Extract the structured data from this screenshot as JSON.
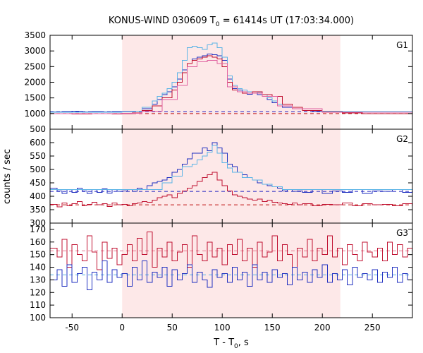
{
  "chart_data": {
    "type": "line",
    "title": "KONUS-WIND 030609 T",
    "title_sub": "0",
    "title_rest": " = 61414s UT (17:03:34.000)",
    "xlabel_main": "T - T",
    "xlabel_sub": "0",
    "xlabel_rest": ", s",
    "ylabel": "counts / sec",
    "xlim": [
      -72,
      290
    ],
    "xticks": [
      -50,
      0,
      50,
      100,
      150,
      200,
      250
    ],
    "xtick_labels": [
      "-50",
      "0",
      "50",
      "100",
      "150",
      "200",
      "250"
    ],
    "shaded_interval": [
      0,
      218
    ],
    "shade_color": "#fde8e8",
    "panels": [
      {
        "name": "G1",
        "ylim": [
          500,
          3500
        ],
        "yticks": [
          500,
          1000,
          1500,
          2000,
          2500,
          3000,
          3500
        ],
        "ytick_labels": [
          "500",
          "1000",
          "1500",
          "2000",
          "2500",
          "3000",
          "3500"
        ],
        "show_bottom_tick_label": true,
        "background_levels": [
          {
            "value": 1060,
            "color": "#2020c0"
          },
          {
            "value": 1000,
            "color": "#c01010"
          }
        ],
        "series": [
          {
            "color": "#2030c0",
            "x": [
              -72,
              -60,
              -50,
              -40,
              -30,
              -20,
              -10,
              0,
              10,
              20,
              30,
              35,
              40,
              45,
              50,
              55,
              60,
              65,
              70,
              75,
              80,
              85,
              90,
              95,
              100,
              105,
              110,
              115,
              120,
              125,
              130,
              135,
              140,
              145,
              150,
              155,
              160,
              170,
              180,
              190,
              200,
              210,
              220,
              230,
              240,
              250,
              260,
              270,
              280,
              290
            ],
            "y": [
              1050,
              1060,
              1070,
              1050,
              1060,
              1050,
              1060,
              1060,
              1080,
              1150,
              1300,
              1450,
              1600,
              1700,
              1850,
              2100,
              2400,
              2600,
              2750,
              2800,
              2850,
              2900,
              2880,
              2850,
              2700,
              2100,
              1800,
              1750,
              1650,
              1620,
              1700,
              1600,
              1550,
              1450,
              1350,
              1250,
              1200,
              1150,
              1100,
              1080,
              1070,
              1060,
              1050,
              1050,
              1060,
              1050,
              1060,
              1050,
              1060,
              1050
            ]
          },
          {
            "color": "#5ab4e6",
            "x": [
              -72,
              0,
              10,
              20,
              30,
              35,
              40,
              45,
              50,
              55,
              60,
              65,
              70,
              75,
              80,
              85,
              90,
              95,
              100,
              105,
              110,
              115,
              120,
              125,
              130,
              135,
              140,
              145,
              150,
              155,
              160,
              170,
              180,
              200,
              220,
              290
            ],
            "y": [
              1040,
              1050,
              1080,
              1200,
              1400,
              1550,
              1650,
              1800,
              2000,
              2300,
              2700,
              3100,
              3150,
              3100,
              3050,
              3200,
              3250,
              3100,
              2800,
              2200,
              1900,
              1800,
              1750,
              1700,
              1650,
              1680,
              1600,
              1500,
              1400,
              1300,
              1250,
              1150,
              1100,
              1070,
              1060,
              1050
            ]
          },
          {
            "color": "#c01030",
            "x": [
              -72,
              -50,
              -30,
              -10,
              0,
              10,
              20,
              30,
              40,
              50,
              55,
              60,
              65,
              70,
              75,
              80,
              85,
              90,
              95,
              100,
              105,
              110,
              115,
              120,
              130,
              140,
              150,
              160,
              170,
              180,
              200,
              220,
              240,
              260,
              290
            ],
            "y": [
              1000,
              990,
              1000,
              990,
              1000,
              1020,
              1100,
              1250,
              1500,
              1750,
              2000,
              2300,
              2600,
              2700,
              2750,
              2800,
              2850,
              2800,
              2750,
              2500,
              2000,
              1750,
              1700,
              1650,
              1700,
              1600,
              1550,
              1300,
              1200,
              1100,
              1050,
              1020,
              1000,
              1000,
              990
            ]
          },
          {
            "color": "#e060a0",
            "x": [
              -72,
              0,
              20,
              40,
              55,
              65,
              75,
              85,
              95,
              105,
              115,
              125,
              140,
              155,
              170,
              200,
              290
            ],
            "y": [
              1000,
              1010,
              1080,
              1450,
              1900,
              2500,
              2650,
              2700,
              2600,
              1850,
              1700,
              1650,
              1550,
              1250,
              1150,
              1040,
              1000
            ]
          }
        ]
      },
      {
        "name": "G2",
        "ylim": [
          300,
          650
        ],
        "yticks": [
          300,
          350,
          400,
          450,
          500,
          550,
          600
        ],
        "ytick_labels": [
          "300",
          "350",
          "400",
          "450",
          "500",
          "550",
          "600"
        ],
        "show_bottom_tick_label": true,
        "background_levels": [
          {
            "value": 418,
            "color": "#2020c0"
          },
          {
            "value": 368,
            "color": "#c01010"
          }
        ],
        "series": [
          {
            "color": "#2030c0",
            "x": [
              -72,
              -65,
              -60,
              -55,
              -50,
              -45,
              -40,
              -35,
              -30,
              -25,
              -20,
              -15,
              -10,
              -5,
              0,
              5,
              10,
              15,
              20,
              25,
              30,
              35,
              40,
              45,
              50,
              55,
              60,
              65,
              70,
              75,
              80,
              85,
              90,
              95,
              100,
              105,
              110,
              115,
              120,
              125,
              130,
              135,
              140,
              145,
              150,
              155,
              160,
              165,
              170,
              175,
              180,
              190,
              200,
              210,
              220,
              230,
              240,
              250,
              260,
              270,
              280,
              290
            ],
            "y": [
              430,
              420,
              410,
              425,
              415,
              430,
              420,
              410,
              425,
              415,
              428,
              412,
              425,
              418,
              420,
              425,
              418,
              430,
              425,
              440,
              450,
              455,
              460,
              470,
              490,
              500,
              520,
              540,
              560,
              560,
              580,
              570,
              600,
              580,
              560,
              520,
              510,
              490,
              480,
              470,
              460,
              450,
              445,
              440,
              435,
              430,
              420,
              425,
              418,
              420,
              415,
              425,
              410,
              420,
              415,
              425,
              410,
              420,
              418,
              425,
              415,
              420
            ]
          },
          {
            "color": "#5ab4e6",
            "x": [
              -72,
              40,
              50,
              60,
              70,
              75,
              80,
              85,
              90,
              95,
              100,
              105,
              110,
              120,
              130,
              140,
              150,
              160,
              290
            ],
            "y": [
              425,
              450,
              475,
              510,
              520,
              535,
              550,
              565,
              590,
              560,
              525,
              505,
              490,
              470,
              460,
              445,
              435,
              425,
              420
            ]
          },
          {
            "color": "#c01030",
            "x": [
              -72,
              -65,
              -60,
              -55,
              -50,
              -45,
              -40,
              -35,
              -30,
              -25,
              -20,
              -15,
              -10,
              -5,
              0,
              5,
              10,
              15,
              20,
              25,
              30,
              35,
              40,
              45,
              50,
              55,
              60,
              65,
              70,
              75,
              80,
              85,
              90,
              95,
              100,
              105,
              110,
              115,
              120,
              125,
              130,
              135,
              140,
              145,
              150,
              155,
              160,
              165,
              170,
              175,
              180,
              190,
              200,
              210,
              220,
              230,
              240,
              250,
              260,
              270,
              280,
              290
            ],
            "y": [
              370,
              360,
              375,
              365,
              372,
              380,
              365,
              370,
              378,
              368,
              372,
              362,
              375,
              368,
              370,
              365,
              372,
              375,
              380,
              378,
              385,
              395,
              400,
              405,
              395,
              410,
              420,
              430,
              440,
              455,
              470,
              480,
              490,
              460,
              440,
              420,
              405,
              400,
              395,
              390,
              385,
              390,
              380,
              385,
              378,
              375,
              372,
              370,
              375,
              368,
              372,
              365,
              370,
              368,
              375,
              365,
              372,
              368,
              370,
              365,
              372,
              368
            ]
          }
        ]
      },
      {
        "name": "G3",
        "ylim": [
          100,
          175
        ],
        "yticks": [
          100,
          110,
          120,
          130,
          140,
          150,
          160,
          170
        ],
        "ytick_labels": [
          "100",
          "110",
          "120",
          "130",
          "140",
          "150",
          "160",
          "170"
        ],
        "show_bottom_tick_label": true,
        "background_levels": [
          {
            "value": 153,
            "color": "#e87890"
          },
          {
            "value": 134,
            "color": "#5ab4e6"
          }
        ],
        "series": [
          {
            "color": "#c01030",
            "x": [
              -72,
              -65,
              -60,
              -55,
              -50,
              -45,
              -40,
              -35,
              -30,
              -25,
              -20,
              -15,
              -10,
              -5,
              0,
              5,
              10,
              15,
              20,
              25,
              30,
              35,
              40,
              45,
              50,
              55,
              60,
              65,
              70,
              75,
              80,
              85,
              90,
              95,
              100,
              105,
              110,
              115,
              120,
              125,
              130,
              135,
              140,
              145,
              150,
              155,
              160,
              165,
              170,
              175,
              180,
              185,
              190,
              195,
              200,
              205,
              210,
              215,
              220,
              225,
              230,
              235,
              240,
              245,
              250,
              255,
              260,
              265,
              270,
              275,
              280,
              285,
              290
            ],
            "y": [
              155,
              148,
              162,
              140,
              158,
              150,
              145,
              165,
              152,
              138,
              160,
              147,
              155,
              142,
              150,
              158,
              145,
              163,
              150,
              168,
              140,
              155,
              148,
              160,
              145,
              152,
              158,
              140,
              165,
              150,
              145,
              160,
              148,
              155,
              142,
              158,
              150,
              162,
              145,
              155,
              140,
              160,
              148,
              152,
              165,
              145,
              158,
              150,
              140,
              155,
              148,
              162,
              145,
              155,
              150,
              165,
              148,
              155,
              142,
              158,
              150,
              145,
              160,
              152,
              148,
              155,
              145,
              160,
              150,
              158,
              148,
              155,
              150
            ]
          },
          {
            "color": "#2030c0",
            "x": [
              -72,
              -65,
              -60,
              -55,
              -50,
              -45,
              -40,
              -35,
              -30,
              -25,
              -20,
              -15,
              -10,
              -5,
              0,
              5,
              10,
              15,
              20,
              25,
              30,
              35,
              40,
              45,
              50,
              55,
              60,
              65,
              70,
              75,
              80,
              85,
              90,
              95,
              100,
              105,
              110,
              115,
              120,
              125,
              130,
              135,
              140,
              145,
              150,
              155,
              160,
              165,
              170,
              175,
              180,
              185,
              190,
              195,
              200,
              205,
              210,
              215,
              220,
              225,
              230,
              235,
              240,
              245,
              250,
              255,
              260,
              265,
              270,
              275,
              280,
              285,
              290
            ],
            "y": [
              130,
              138,
              125,
              142,
              128,
              135,
              140,
              122,
              136,
              130,
              145,
              128,
              138,
              132,
              135,
              125,
              140,
              130,
              145,
              128,
              136,
              132,
              140,
              125,
              138,
              130,
              135,
              142,
              128,
              136,
              130,
              124,
              138,
              132,
              135,
              128,
              140,
              130,
              136,
              125,
              142,
              130,
              136,
              128,
              138,
              132,
              135,
              126,
              140,
              130,
              136,
              128,
              138,
              132,
              142,
              128,
              135,
              130,
              138,
              126,
              140,
              132,
              135,
              130,
              138,
              128,
              136,
              132,
              140,
              128,
              135,
              130,
              138
            ]
          }
        ]
      }
    ]
  }
}
